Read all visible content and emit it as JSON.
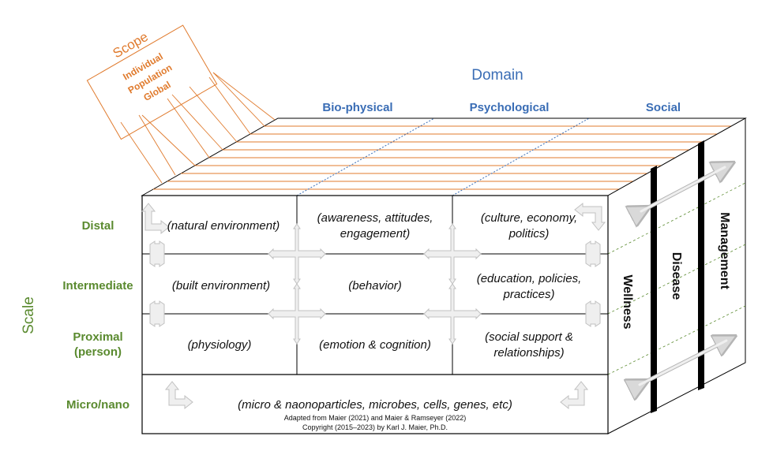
{
  "axes": {
    "domain_title": "Domain",
    "scale_title": "Scale",
    "scope_title": "Scope"
  },
  "scope_items": [
    "Individual",
    "Population",
    "Global"
  ],
  "domains": [
    "Bio-physical",
    "Psychological",
    "Social"
  ],
  "scale_rows": {
    "distal": "Distal",
    "intermediate": "Intermediate",
    "proximal_1": "Proximal",
    "proximal_2": "(person)",
    "micro": "Micro/nano"
  },
  "cells": {
    "distal_bio": "(natural environment)",
    "distal_psych_1": "(awareness, attitudes,",
    "distal_psych_2": "engagement)",
    "distal_social_1": "(culture, economy,",
    "distal_social_2": "politics)",
    "inter_bio": "(built environment)",
    "inter_psych": "(behavior)",
    "inter_social_1": "(education, policies,",
    "inter_social_2": "practices)",
    "prox_bio": "(physiology)",
    "prox_psych": "(emotion & cognition)",
    "prox_social_1": "(social support &",
    "prox_social_2": "relationships)",
    "micro": "(micro & naonoparticles, microbes, cells, genes, etc)"
  },
  "side_labels": [
    "Wellness",
    "Disease",
    "Management"
  ],
  "footer": {
    "line1": "Adapted from Maier (2021) and Maier & Ramseyer (2022)",
    "line2": "Copyright (2015–2023) by Karl J. Maier, Ph.D."
  },
  "colors": {
    "scope": "#e07b2e",
    "domain": "#3a6db5",
    "scale": "#5a8a2f",
    "arrow": "#d0d0d0"
  }
}
